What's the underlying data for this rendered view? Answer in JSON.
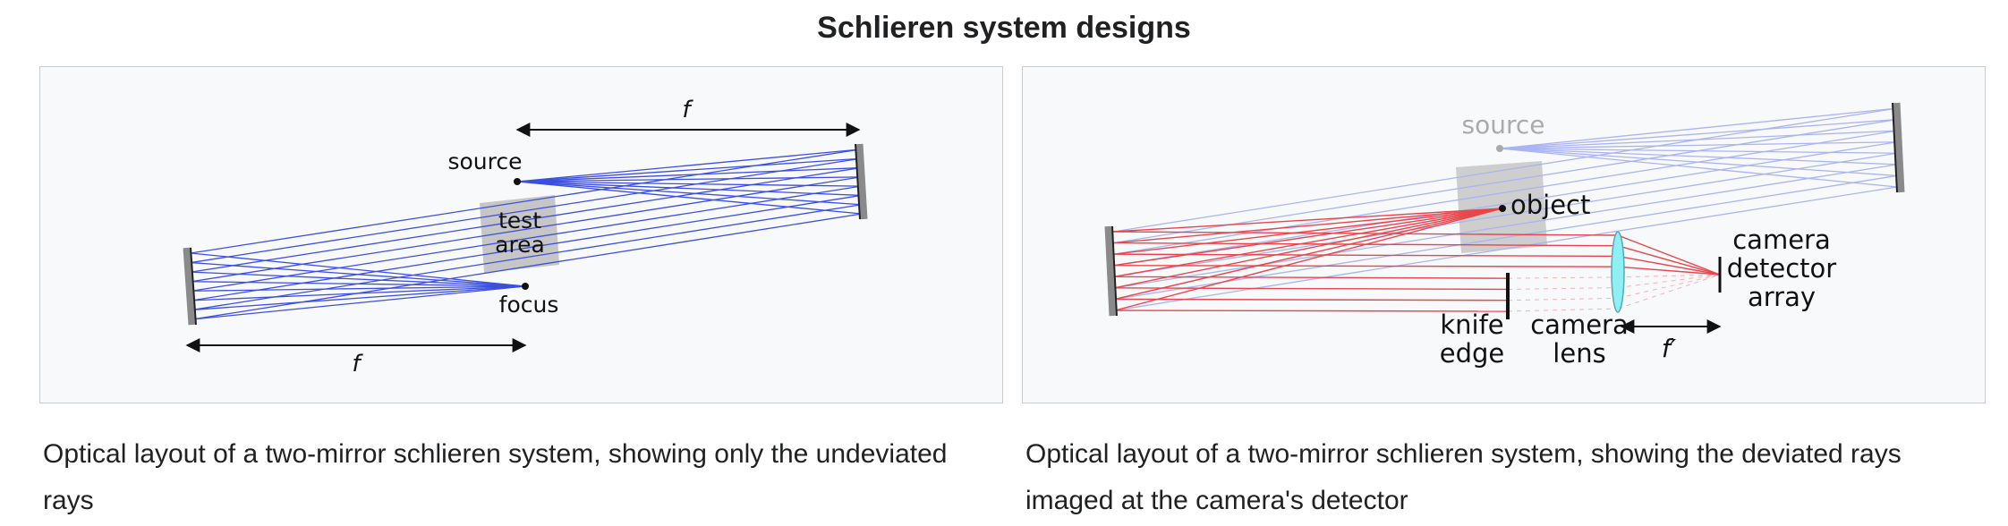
{
  "title": "Schlieren system designs",
  "left_figure": {
    "labels": {
      "focal_length_top": "f",
      "source": "source",
      "test_area_line1": "test",
      "test_area_line2": "area",
      "focus": "focus",
      "focal_length_bottom": "f"
    },
    "caption": "Optical layout of a two-mirror schlieren system, showing only the undeviated rays",
    "colors": {
      "rays": "#3b4fe0",
      "mirror": "#8a8a8a",
      "test_area": "#c6c6c6"
    }
  },
  "right_figure": {
    "labels": {
      "source": "source",
      "object": "object",
      "camera_detector_line1": "camera",
      "camera_detector_line2": "detector",
      "camera_detector_line3": "array",
      "knife_edge_line1": "knife",
      "knife_edge_line2": "edge",
      "camera_lens_line1": "camera",
      "camera_lens_line2": "lens",
      "focal_length_prime": "f′"
    },
    "caption": "Optical layout of a two-mirror schlieren system, showing the deviated rays imaged at the camera's detector",
    "colors": {
      "faint_rays": "#aab4f0",
      "deviated_rays": "#e8464a",
      "lens": "#8ef0f5",
      "source_gray": "#aaaaaa"
    }
  }
}
